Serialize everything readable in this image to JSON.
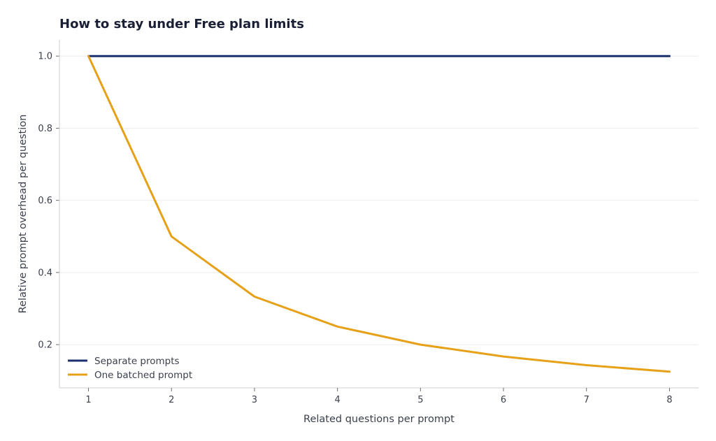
{
  "chart_data": {
    "type": "line",
    "title": "How to stay under Free plan limits",
    "xlabel": "Related questions per prompt",
    "ylabel": "Relative prompt overhead per question",
    "x": [
      1,
      2,
      3,
      4,
      5,
      6,
      7,
      8
    ],
    "xlim": [
      0.65,
      8.35
    ],
    "ylim": [
      0.08,
      1.045
    ],
    "xticks": [
      "1",
      "2",
      "3",
      "4",
      "5",
      "6",
      "7",
      "8"
    ],
    "yticks": [
      "0.2",
      "0.4",
      "0.6",
      "0.8",
      "1.0"
    ],
    "grid": "horizontal",
    "legend_position": "lower-left",
    "series": [
      {
        "name": "Separate prompts",
        "color": "#1b2f6e",
        "values": [
          1.0,
          1.0,
          1.0,
          1.0,
          1.0,
          1.0,
          1.0,
          1.0
        ]
      },
      {
        "name": "One batched prompt",
        "color": "#e6a119",
        "values": [
          1.0,
          0.5,
          0.333,
          0.25,
          0.2,
          0.167,
          0.143,
          0.125
        ]
      }
    ]
  }
}
